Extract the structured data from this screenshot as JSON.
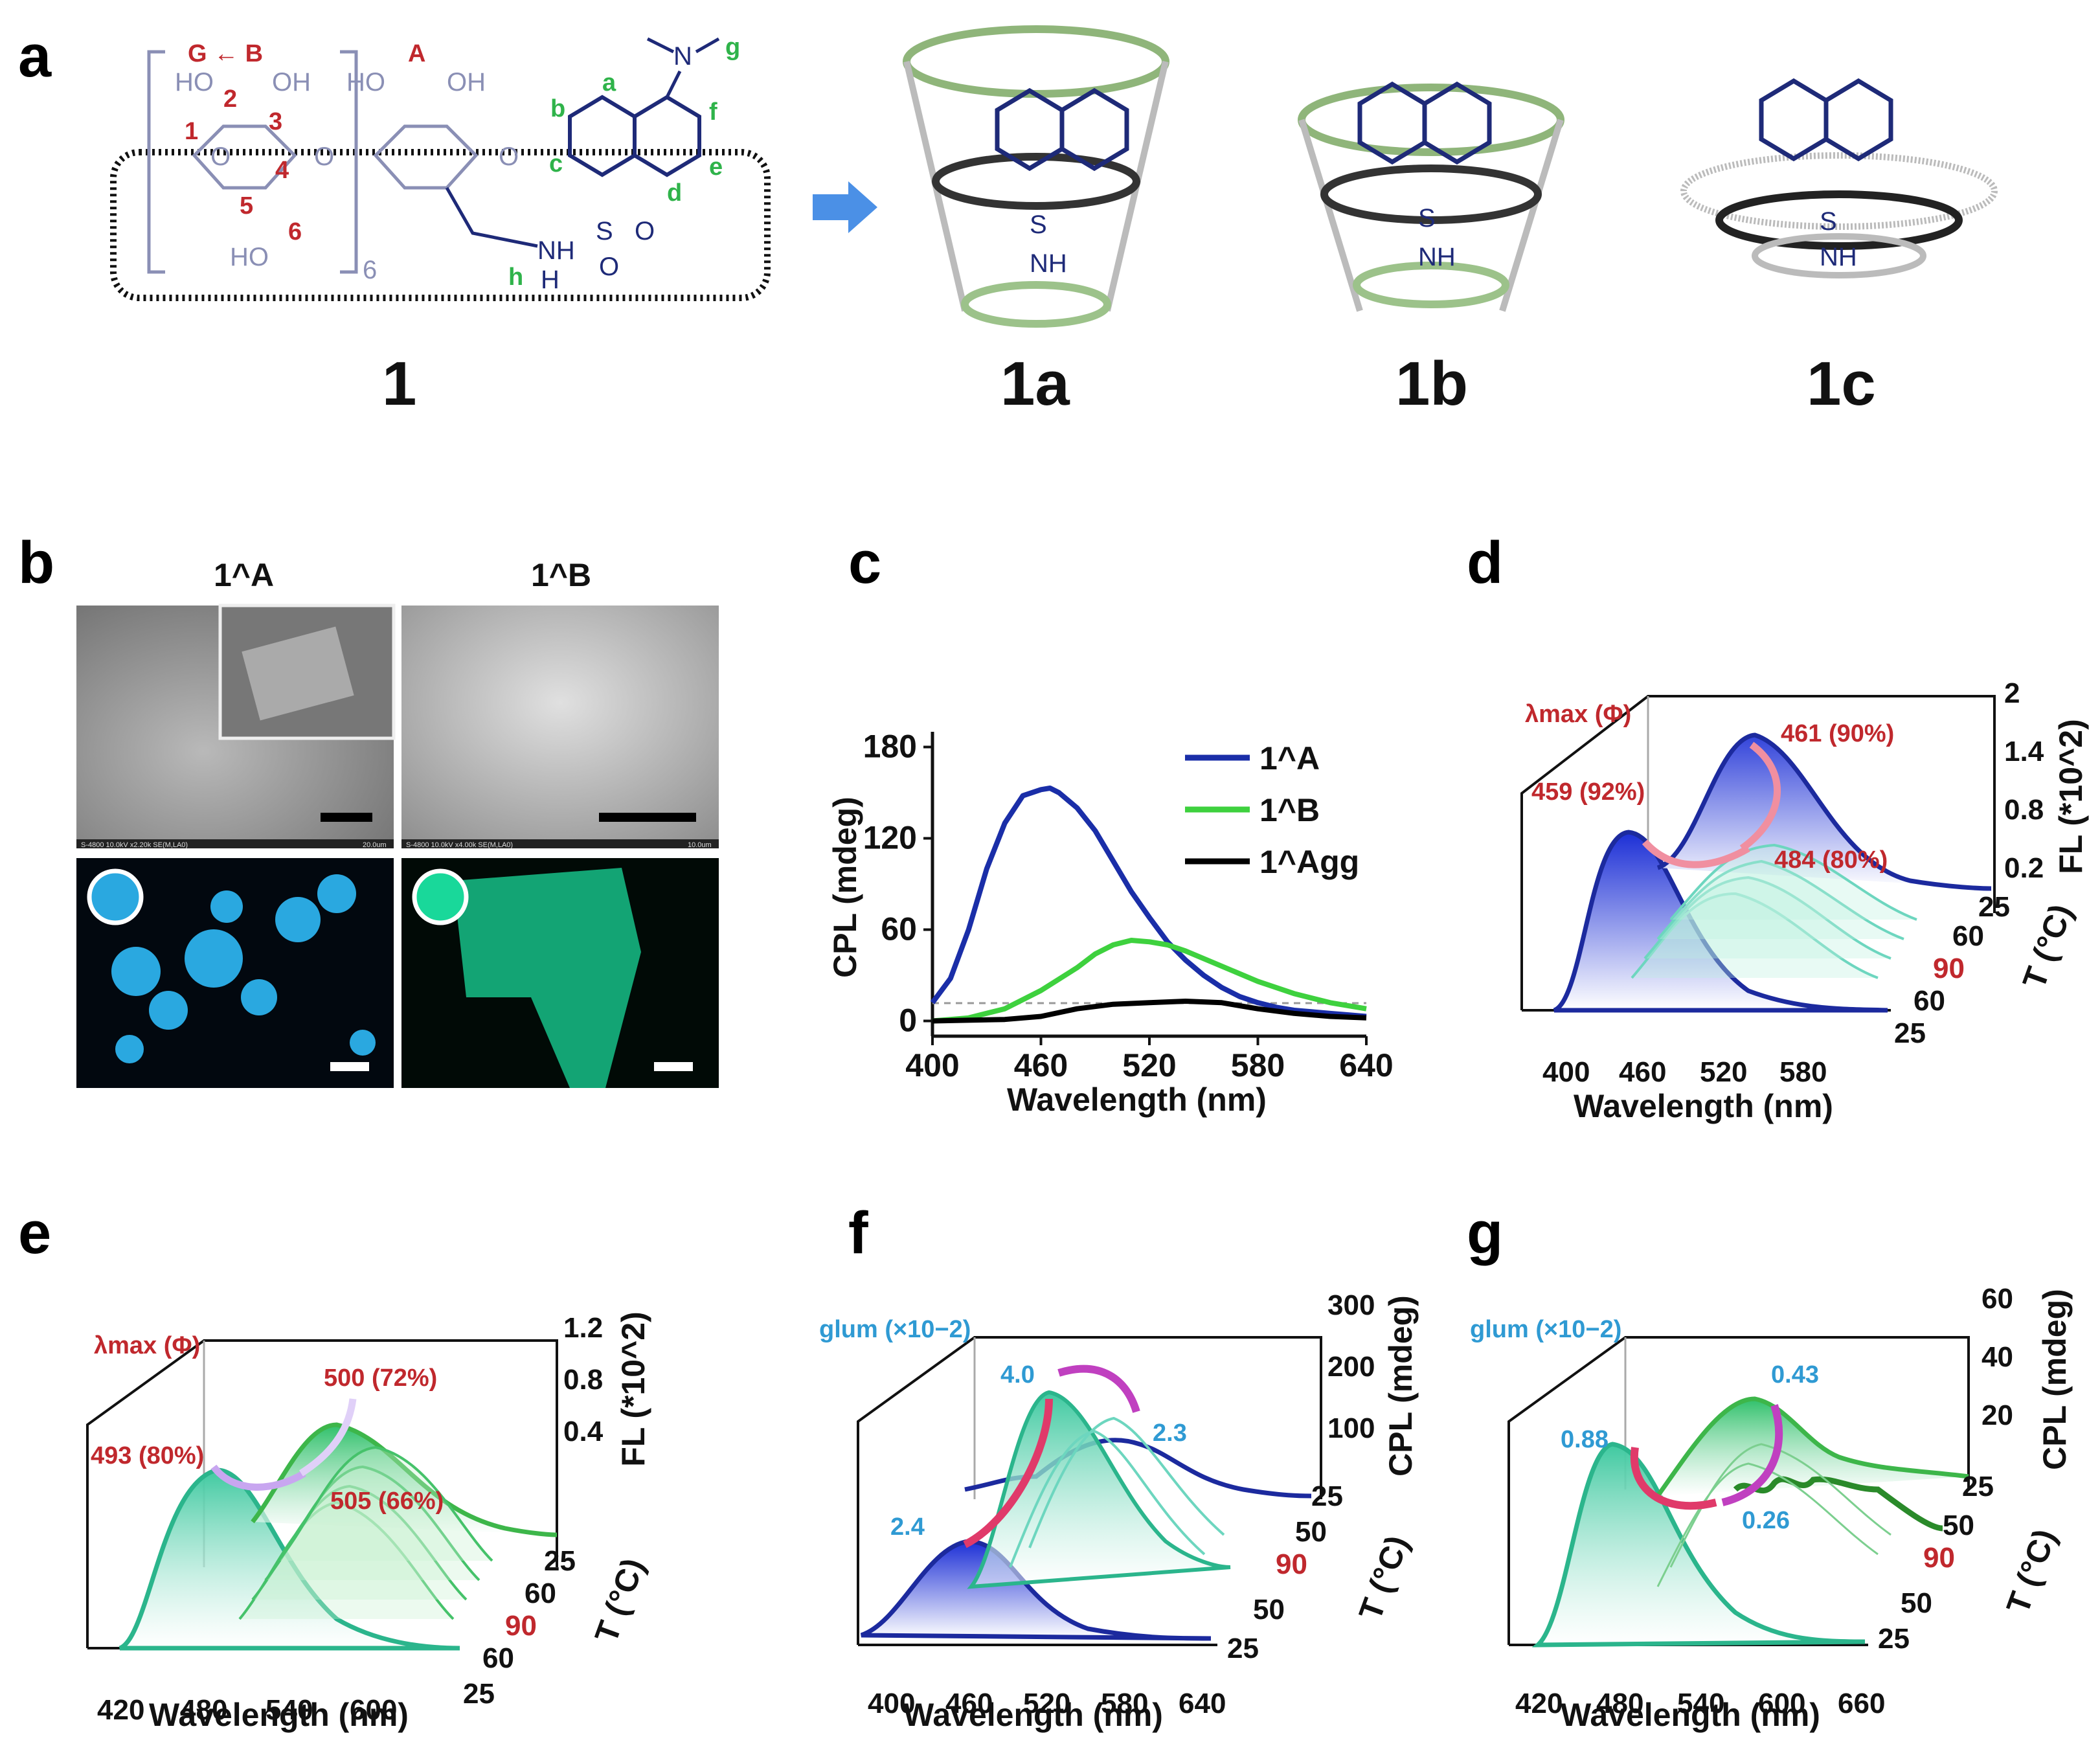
{
  "panels": {
    "a": "a",
    "b": "b",
    "c": "c",
    "d": "d",
    "e": "e",
    "f": "f",
    "g": "g"
  },
  "panel_a": {
    "compound_labels": [
      "1",
      "1a",
      "1b",
      "1c"
    ],
    "ring_labels": {
      "g_b": "G ← B",
      "a": "A",
      "n": "6"
    },
    "carbon_labels": [
      "1",
      "2",
      "3",
      "4",
      "5",
      "6"
    ],
    "proton_labels": [
      "a",
      "b",
      "c",
      "d",
      "e",
      "f",
      "g",
      "h"
    ],
    "groups": {
      "ho": "HO",
      "oh": "OH",
      "o": "O",
      "so2": "S",
      "o_sulf": "O",
      "nh": "NH",
      "n": "N",
      "h": "H",
      "ho_bottom": "HO"
    }
  },
  "panel_b": {
    "titles": [
      "1^A",
      "1^B"
    ],
    "sem_caption_a": "S-4800 10.0kV x2.20k SE(M,LA0)",
    "sem_scale_a": "20.0um",
    "sem_caption_b": "S-4800 10.0kV x4.00k SE(M,LA0)",
    "sem_scale_b": "10.0um",
    "colors": {
      "fluor_a": "#2aa8e0",
      "fluor_b": "#19d89a"
    }
  },
  "chart_data": [
    {
      "panel": "c",
      "type": "line",
      "xlabel": "Wavelength (nm)",
      "ylabel": "CPL (mdeg)",
      "xlim": [
        400,
        640
      ],
      "ylim": [
        -10,
        190
      ],
      "xticks": [
        400,
        460,
        520,
        580,
        640
      ],
      "yticks": [
        0,
        60,
        120,
        180
      ],
      "series": [
        {
          "name": "1^A",
          "color": "#1a2ea8",
          "x": [
            400,
            410,
            420,
            430,
            440,
            450,
            460,
            465,
            470,
            480,
            490,
            500,
            510,
            520,
            530,
            540,
            550,
            560,
            570,
            580,
            590,
            600,
            610,
            620,
            630,
            640
          ],
          "y": [
            12,
            28,
            60,
            100,
            130,
            148,
            152,
            153,
            150,
            140,
            125,
            105,
            85,
            68,
            52,
            40,
            30,
            22,
            16,
            12,
            9,
            7,
            6,
            5,
            4,
            3
          ]
        },
        {
          "name": "1^B",
          "color": "#3ed13e",
          "x": [
            400,
            420,
            440,
            460,
            480,
            490,
            500,
            510,
            520,
            530,
            540,
            560,
            580,
            600,
            620,
            640
          ],
          "y": [
            0,
            2,
            8,
            20,
            35,
            44,
            50,
            53,
            52,
            50,
            46,
            36,
            26,
            18,
            12,
            8
          ]
        },
        {
          "name": "1^Agg",
          "color": "#000000",
          "x": [
            400,
            440,
            460,
            480,
            500,
            520,
            540,
            560,
            580,
            600,
            620,
            640
          ],
          "y": [
            0,
            1,
            3,
            8,
            11,
            12,
            13,
            12,
            8,
            5,
            3,
            2
          ]
        }
      ]
    },
    {
      "panel": "d",
      "type": "area",
      "xlabel": "Wavelength (nm)",
      "ylabel": "FL (*10^2)",
      "zlabel": "T (°C)",
      "xticks": [
        400,
        460,
        520,
        580
      ],
      "yticks": [
        0.2,
        0.8,
        1.4,
        2.0
      ],
      "zticks": [
        "25",
        "60",
        "90",
        "60",
        "25"
      ],
      "annotations": [
        "459 (92%)",
        "461 (90%)",
        "484 (80%)"
      ],
      "legend_title": "λmax (Φ)",
      "front_peak": 459,
      "back_peak": 461,
      "mid_peak": 484
    },
    {
      "panel": "e",
      "type": "area",
      "xlabel": "Wavelength (nm)",
      "ylabel": "FL (*10^2)",
      "zlabel": "T (°C)",
      "xticks": [
        420,
        480,
        540,
        600
      ],
      "yticks": [
        0.4,
        0.8,
        1.2
      ],
      "zticks": [
        "25",
        "60",
        "90",
        "60",
        "25"
      ],
      "annotations": [
        "493 (80%)",
        "500 (72%)",
        "505 (66%)"
      ],
      "legend_title": "λmax (Φ)"
    },
    {
      "panel": "f",
      "type": "area",
      "xlabel": "Wavelength (nm)",
      "ylabel": "CPL (mdeg)",
      "zlabel": "T (°C)",
      "xticks": [
        400,
        460,
        520,
        580,
        640
      ],
      "yticks": [
        100,
        200,
        300
      ],
      "zticks": [
        "25",
        "50",
        "90",
        "50",
        "25"
      ],
      "annotations": [
        "2.4",
        "4.0",
        "2.3"
      ],
      "legend_title": "glum (×10−2)"
    },
    {
      "panel": "g",
      "type": "area",
      "xlabel": "Wavelength (nm)",
      "ylabel": "CPL (mdeg)",
      "zlabel": "T (°C)",
      "xticks": [
        420,
        480,
        540,
        600,
        660
      ],
      "yticks": [
        20,
        40,
        60
      ],
      "zticks": [
        "25",
        "50",
        "90",
        "50",
        "25"
      ],
      "annotations": [
        "0.88",
        "0.43",
        "0.26"
      ],
      "legend_title": "glum (×10−2)"
    }
  ]
}
